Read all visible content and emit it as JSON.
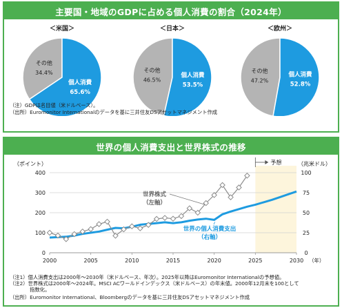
{
  "top_title": "主要国・地域のGDPに占める個人消費の割合（2024年）",
  "bottom_title": "世界の個人消費支出と世界株式の推移",
  "colors": {
    "brand_green": "#4caf50",
    "consumption_blue": "#1e9be0",
    "other_gray": "#b4b4b4",
    "stock_gray": "#8c8c8c",
    "forecast_bg": "#fdf5dc"
  },
  "pies": [
    {
      "region": "＜米国＞",
      "labels": [
        "個人消費",
        "その他"
      ],
      "values": [
        65.6,
        34.4
      ],
      "value_labels": [
        "65.6%",
        "34.4%"
      ]
    },
    {
      "region": "＜日本＞",
      "labels": [
        "個人消費",
        "その他"
      ],
      "values": [
        53.5,
        46.5
      ],
      "value_labels": [
        "53.5%",
        "46.5%"
      ]
    },
    {
      "region": "＜欧州＞",
      "labels": [
        "個人消費",
        "その他"
      ],
      "values": [
        52.8,
        47.2
      ],
      "value_labels": [
        "52.8%",
        "47.2%"
      ]
    }
  ],
  "top_notes": [
    "（注）GDPは名目値（米ドルベース）。",
    "（出所）Euromonitor Internationalのデータを基に三井住友DSアセットマネジメント作成"
  ],
  "bottom_notes": [
    "（注1）個人消費支出は2000年～2030年（米ドルベース、年次）。2025年以降はEuromonitor Internationalの予想値。",
    "（注2）世界株式は2000年～2024年。MSCI ACワールドインデックス（米ドルベース）の年末値。2000年12月末を100として",
    "　　　　指数化。",
    "（出所）Euromonitor International、Bloombergのデータを基に三井住友DSアセットマネジメント作成"
  ],
  "chart_data": [
    {
      "type": "pie",
      "title": "＜米国＞",
      "labels": [
        "個人消費",
        "その他"
      ],
      "values": [
        65.6,
        34.4
      ]
    },
    {
      "type": "pie",
      "title": "＜日本＞",
      "labels": [
        "個人消費",
        "その他"
      ],
      "values": [
        53.5,
        46.5
      ]
    },
    {
      "type": "pie",
      "title": "＜欧州＞",
      "labels": [
        "個人消費",
        "その他"
      ],
      "values": [
        52.8,
        47.2
      ]
    },
    {
      "type": "line",
      "title": "世界の個人消費支出と世界株式の推移",
      "left_axis_label": "（ポイント）",
      "right_axis_label": "（兆米ドル）",
      "x_unit_label": "（年）",
      "forecast_label": "予想",
      "forecast_start": 2025,
      "x_range": [
        2000,
        2030
      ],
      "x_ticks": [
        2000,
        2005,
        2010,
        2015,
        2020,
        2025,
        2030
      ],
      "left_ylim": [
        0,
        400
      ],
      "left_ticks": [
        0,
        100,
        200,
        300,
        400
      ],
      "right_ylim": [
        0,
        100
      ],
      "right_ticks": [
        0,
        25,
        50,
        75,
        100
      ],
      "grid": true,
      "series": [
        {
          "name": "世界株式（左軸）",
          "axis": "left",
          "marker": "diamond",
          "x": [
            2000,
            2001,
            2002,
            2003,
            2004,
            2005,
            2006,
            2007,
            2008,
            2009,
            2010,
            2011,
            2012,
            2013,
            2014,
            2015,
            2016,
            2017,
            2018,
            2019,
            2020,
            2021,
            2022,
            2023,
            2024
          ],
          "values": [
            100,
            86,
            68,
            93,
            106,
            118,
            143,
            155,
            85,
            117,
            132,
            122,
            139,
            169,
            174,
            170,
            183,
            222,
            200,
            248,
            288,
            338,
            277,
            326,
            385
          ]
        },
        {
          "name": "世界の個人消費支出（右軸）",
          "axis": "right",
          "x": [
            2000,
            2001,
            2002,
            2003,
            2004,
            2005,
            2006,
            2007,
            2008,
            2009,
            2010,
            2011,
            2012,
            2013,
            2014,
            2015,
            2016,
            2017,
            2018,
            2019,
            2020,
            2021,
            2022,
            2023,
            2024,
            2025,
            2026,
            2027,
            2028,
            2029,
            2030
          ],
          "values": [
            19,
            19.5,
            20,
            21.5,
            23.5,
            25,
            26.5,
            28.8,
            31,
            30.5,
            32.5,
            35,
            36,
            37,
            38,
            37,
            38,
            40,
            41.5,
            42.5,
            41,
            48,
            51.5,
            54.5,
            57.5,
            60,
            63,
            66,
            69.5,
            73,
            76.5
          ]
        }
      ]
    }
  ]
}
